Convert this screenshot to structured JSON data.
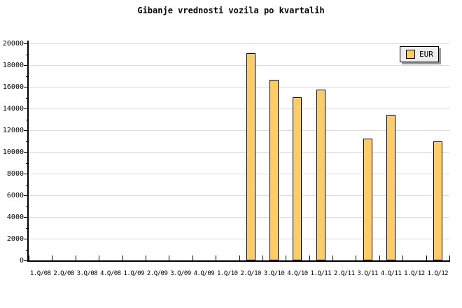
{
  "title": "Gibanje vrednosti vozila po kvartalih",
  "legend": {
    "label": "EUR"
  },
  "colors": {
    "background": "#ffffff",
    "bar_fill": "#ffcc66",
    "bar_border": "#000000",
    "gridline": "#dcdcdc",
    "axis": "#000000",
    "legend_bg": "#eeeeee",
    "legend_shadow": "#999999",
    "text": "#000000"
  },
  "chart_data": {
    "type": "bar",
    "title": "Gibanje vrednosti vozila po kvartalih",
    "categories": [
      "1.Q/08",
      "2.Q/08",
      "3.Q/08",
      "4.Q/08",
      "1.Q/09",
      "2.Q/09",
      "3.Q/09",
      "4.Q/09",
      "1.Q/10",
      "2.Q/10",
      "3.Q/10",
      "4.Q/10",
      "1.Q/11",
      "2.Q/11",
      "3.Q/11",
      "4.Q/11",
      "1.Q/12",
      "1.Q/12"
    ],
    "series": [
      {
        "name": "EUR",
        "values": [
          null,
          null,
          null,
          null,
          null,
          null,
          null,
          null,
          null,
          19100,
          16650,
          15000,
          15750,
          null,
          11250,
          13400,
          null,
          10950
        ]
      }
    ],
    "xlabel": "",
    "ylabel": "",
    "ylim": [
      0,
      20000
    ],
    "yticks": [
      0,
      2000,
      4000,
      6000,
      8000,
      10000,
      12000,
      14000,
      16000,
      18000,
      20000
    ],
    "ytick_interval": 2000,
    "minor_ytick_interval": 1000,
    "grid": true,
    "legend_position": "top-right"
  }
}
